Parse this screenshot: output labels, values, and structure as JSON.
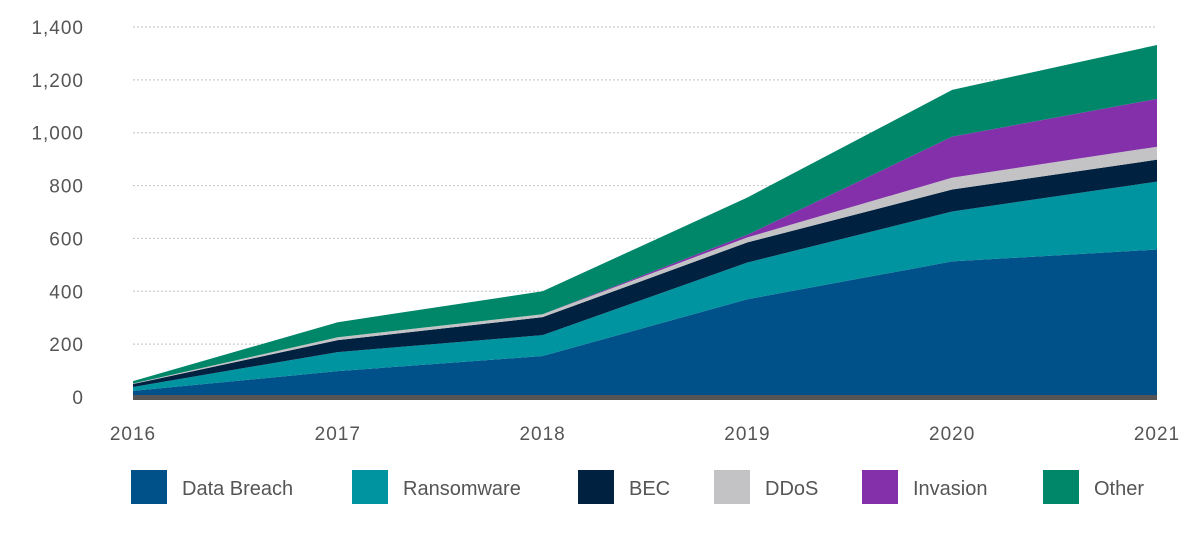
{
  "chart_data": {
    "type": "area",
    "stacked": true,
    "title": "",
    "xlabel": "",
    "ylabel": "",
    "categories": [
      "2016",
      "2017",
      "2018",
      "2019",
      "2020",
      "2021"
    ],
    "ylim": [
      0,
      1400
    ],
    "yticks": [
      0,
      200,
      400,
      600,
      800,
      1000,
      1200,
      1400
    ],
    "ytick_labels": [
      "0",
      "200",
      "400",
      "600",
      "800",
      "1,000",
      "1,200",
      "1,400"
    ],
    "grid": true,
    "legend_position": "bottom",
    "series": [
      {
        "name": "Data Breach",
        "color": "#00518a",
        "values": [
          23,
          98,
          155,
          370,
          513,
          558
        ]
      },
      {
        "name": "Ransomware",
        "color": "#0093a0",
        "values": [
          15,
          72,
          79,
          139,
          189,
          257
        ]
      },
      {
        "name": "BEC",
        "color": "#00213f",
        "values": [
          11,
          45,
          68,
          76,
          83,
          83
        ]
      },
      {
        "name": "DDoS",
        "color": "#c3c3c5",
        "values": [
          2,
          11,
          11,
          19,
          45,
          49
        ]
      },
      {
        "name": "Invasion",
        "color": "#8330aa",
        "values": [
          0,
          0,
          0,
          10,
          155,
          181
        ]
      },
      {
        "name": "Other",
        "color": "#00876a",
        "values": [
          9,
          57,
          87,
          141,
          177,
          204
        ]
      }
    ]
  }
}
